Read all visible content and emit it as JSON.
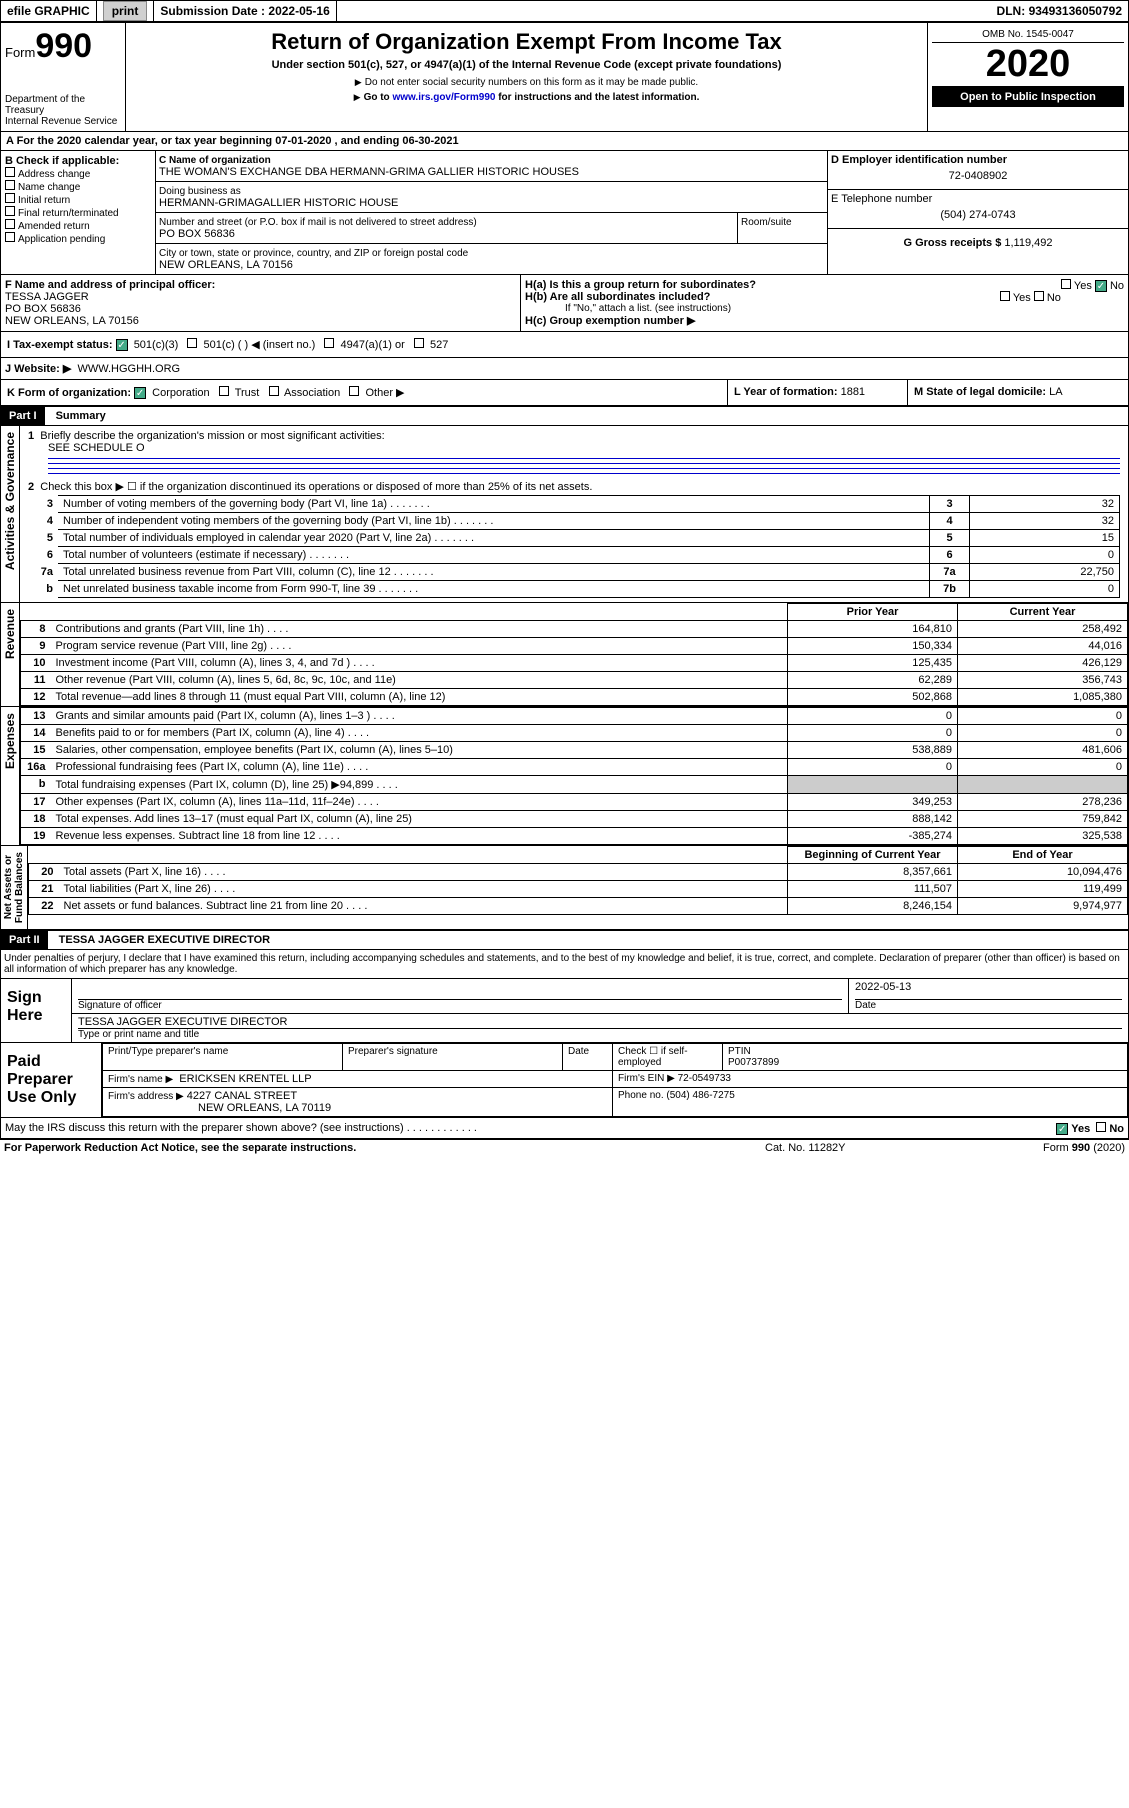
{
  "topbar": {
    "efile": "efile GRAPHIC",
    "print": "print",
    "subdate_lbl": "Submission Date :",
    "subdate": "2022-05-16",
    "dln_lbl": "DLN:",
    "dln": "93493136050792"
  },
  "header": {
    "form": "Form",
    "num": "990",
    "dept": "Department of the Treasury\nInternal Revenue Service",
    "title": "Return of Organization Exempt From Income Tax",
    "sub": "Under section 501(c), 527, or 4947(a)(1) of the Internal Revenue Code (except private foundations)",
    "note1": "Do not enter social security numbers on this form as it may be made public.",
    "note2_pre": "Go to ",
    "note2_link": "www.irs.gov/Form990",
    "note2_post": " for instructions and the latest information.",
    "omb": "OMB No. 1545-0047",
    "year": "2020",
    "opi": "Open to Public Inspection"
  },
  "A": {
    "prefix": "A For the 2020 calendar year, or tax year beginning ",
    "begin": "07-01-2020",
    "mid": " , and ending ",
    "end": "06-30-2021"
  },
  "B": {
    "title": "B Check if applicable:",
    "items": [
      "Address change",
      "Name change",
      "Initial return",
      "Final return/terminated",
      "Amended return",
      "Application pending"
    ]
  },
  "C": {
    "lbl": "C Name of organization",
    "name": "THE WOMAN'S EXCHANGE DBA HERMANN-GRIMA GALLIER HISTORIC HOUSES",
    "dba_lbl": "Doing business as",
    "dba": "HERMANN-GRIMAGALLIER HISTORIC HOUSE",
    "street_lbl": "Number and street (or P.O. box if mail is not delivered to street address)",
    "room_lbl": "Room/suite",
    "street": "PO BOX 56836",
    "city_lbl": "City or town, state or province, country, and ZIP or foreign postal code",
    "city": "NEW ORLEANS, LA  70156"
  },
  "D": {
    "lbl": "D Employer identification number",
    "val": "72-0408902"
  },
  "E": {
    "lbl": "E Telephone number",
    "val": "(504) 274-0743"
  },
  "G": {
    "lbl": "G Gross receipts $",
    "val": "1,119,492"
  },
  "F": {
    "lbl": "F  Name and address of principal officer:",
    "val": "TESSA JAGGER\nPO BOX 56836\nNEW ORLEANS, LA  70156"
  },
  "H": {
    "a": "H(a)  Is this a group return for subordinates?",
    "b": "H(b)  Are all subordinates included?",
    "bnote": "If \"No,\" attach a list. (see instructions)",
    "c": "H(c)  Group exemption number ▶",
    "yes": "Yes",
    "no": "No"
  },
  "I": {
    "lbl": "I  Tax-exempt status:",
    "o1": "501(c)(3)",
    "o2": "501(c) (  ) ◀ (insert no.)",
    "o3": "4947(a)(1) or",
    "o4": "527"
  },
  "J": {
    "lbl": "J  Website: ▶",
    "val": "WWW.HGGHH.ORG"
  },
  "K": {
    "lbl": "K Form of organization:",
    "o": [
      "Corporation",
      "Trust",
      "Association",
      "Other ▶"
    ]
  },
  "L": {
    "lbl": "L Year of formation:",
    "val": "1881"
  },
  "M": {
    "lbl": "M State of legal domicile:",
    "val": "LA"
  },
  "p1": {
    "title": "Part I",
    "name": "Summary",
    "side": "Activities & Governance",
    "l1": "Briefly describe the organization's mission or most significant activities:",
    "l1v": "SEE SCHEDULE O",
    "l2": "Check this box ▶ ☐  if the organization discontinued its operations or disposed of more than 25% of its net assets.",
    "rows": [
      {
        "n": "3",
        "t": "Number of voting members of the governing body (Part VI, line 1a)",
        "box": "3",
        "v": "32"
      },
      {
        "n": "4",
        "t": "Number of independent voting members of the governing body (Part VI, line 1b)",
        "box": "4",
        "v": "32"
      },
      {
        "n": "5",
        "t": "Total number of individuals employed in calendar year 2020 (Part V, line 2a)",
        "box": "5",
        "v": "15"
      },
      {
        "n": "6",
        "t": "Total number of volunteers (estimate if necessary)",
        "box": "6",
        "v": "0"
      },
      {
        "n": "7a",
        "t": "Total unrelated business revenue from Part VIII, column (C), line 12",
        "box": "7a",
        "v": "22,750"
      },
      {
        "n": "b",
        "t": "Net unrelated business taxable income from Form 990-T, line 39",
        "box": "7b",
        "v": "0"
      }
    ]
  },
  "rev": {
    "side": "Revenue",
    "h1": "Prior Year",
    "h2": "Current Year",
    "rows": [
      {
        "n": "8",
        "t": "Contributions and grants (Part VIII, line 1h)",
        "p": "164,810",
        "c": "258,492"
      },
      {
        "n": "9",
        "t": "Program service revenue (Part VIII, line 2g)",
        "p": "150,334",
        "c": "44,016"
      },
      {
        "n": "10",
        "t": "Investment income (Part VIII, column (A), lines 3, 4, and 7d )",
        "p": "125,435",
        "c": "426,129"
      },
      {
        "n": "11",
        "t": "Other revenue (Part VIII, column (A), lines 5, 6d, 8c, 9c, 10c, and 11e)",
        "p": "62,289",
        "c": "356,743"
      },
      {
        "n": "12",
        "t": "Total revenue—add lines 8 through 11 (must equal Part VIII, column (A), line 12)",
        "p": "502,868",
        "c": "1,085,380"
      }
    ]
  },
  "exp": {
    "side": "Expenses",
    "rows": [
      {
        "n": "13",
        "t": "Grants and similar amounts paid (Part IX, column (A), lines 1–3 )",
        "p": "0",
        "c": "0"
      },
      {
        "n": "14",
        "t": "Benefits paid to or for members (Part IX, column (A), line 4)",
        "p": "0",
        "c": "0"
      },
      {
        "n": "15",
        "t": "Salaries, other compensation, employee benefits (Part IX, column (A), lines 5–10)",
        "p": "538,889",
        "c": "481,606"
      },
      {
        "n": "16a",
        "t": "Professional fundraising fees (Part IX, column (A), line 11e)",
        "p": "0",
        "c": "0"
      },
      {
        "n": "b",
        "t": "Total fundraising expenses (Part IX, column (D), line 25) ▶94,899",
        "p": "",
        "c": ""
      },
      {
        "n": "17",
        "t": "Other expenses (Part IX, column (A), lines 11a–11d, 11f–24e)",
        "p": "349,253",
        "c": "278,236"
      },
      {
        "n": "18",
        "t": "Total expenses. Add lines 13–17 (must equal Part IX, column (A), line 25)",
        "p": "888,142",
        "c": "759,842"
      },
      {
        "n": "19",
        "t": "Revenue less expenses. Subtract line 18 from line 12",
        "p": "-385,274",
        "c": "325,538"
      }
    ]
  },
  "na": {
    "side": "Net Assets or\nFund Balances",
    "h1": "Beginning of Current Year",
    "h2": "End of Year",
    "rows": [
      {
        "n": "20",
        "t": "Total assets (Part X, line 16)",
        "p": "8,357,661",
        "c": "10,094,476"
      },
      {
        "n": "21",
        "t": "Total liabilities (Part X, line 26)",
        "p": "111,507",
        "c": "119,499"
      },
      {
        "n": "22",
        "t": "Net assets or fund balances. Subtract line 21 from line 20",
        "p": "8,246,154",
        "c": "9,974,977"
      }
    ]
  },
  "p2": {
    "title": "Part II",
    "name": "TESSA JAGGER  EXECUTIVE DIRECTOR",
    "decl": "Under penalties of perjury, I declare that I have examined this return, including accompanying schedules and statements, and to the best of my knowledge and belief, it is true, correct, and complete. Declaration of preparer (other than officer) is based on all information of which preparer has any knowledge.",
    "sign": "Sign Here",
    "sig_lbl": "Signature of officer",
    "date_lbl": "Date",
    "date": "2022-05-13",
    "name_lbl": "Type or print name and title",
    "paid": "Paid Preparer Use Only",
    "pp_name_lbl": "Print/Type preparer's name",
    "pp_sig_lbl": "Preparer's signature",
    "pp_date_lbl": "Date",
    "pp_check": "Check ☐ if self-employed",
    "ptin_lbl": "PTIN",
    "ptin": "P00737899",
    "firm_lbl": "Firm's name   ▶",
    "firm": "ERICKSEN KRENTEL LLP",
    "ein_lbl": "Firm's EIN ▶",
    "ein": "72-0549733",
    "addr_lbl": "Firm's address ▶",
    "addr1": "4227 CANAL STREET",
    "addr2": "NEW ORLEANS, LA  70119",
    "phone_lbl": "Phone no.",
    "phone": "(504) 486-7275",
    "discuss": "May the IRS discuss this return with the preparer shown above? (see instructions)"
  },
  "foot": {
    "l": "For Paperwork Reduction Act Notice, see the separate instructions.",
    "m": "Cat. No. 11282Y",
    "r": "Form 990 (2020)"
  }
}
